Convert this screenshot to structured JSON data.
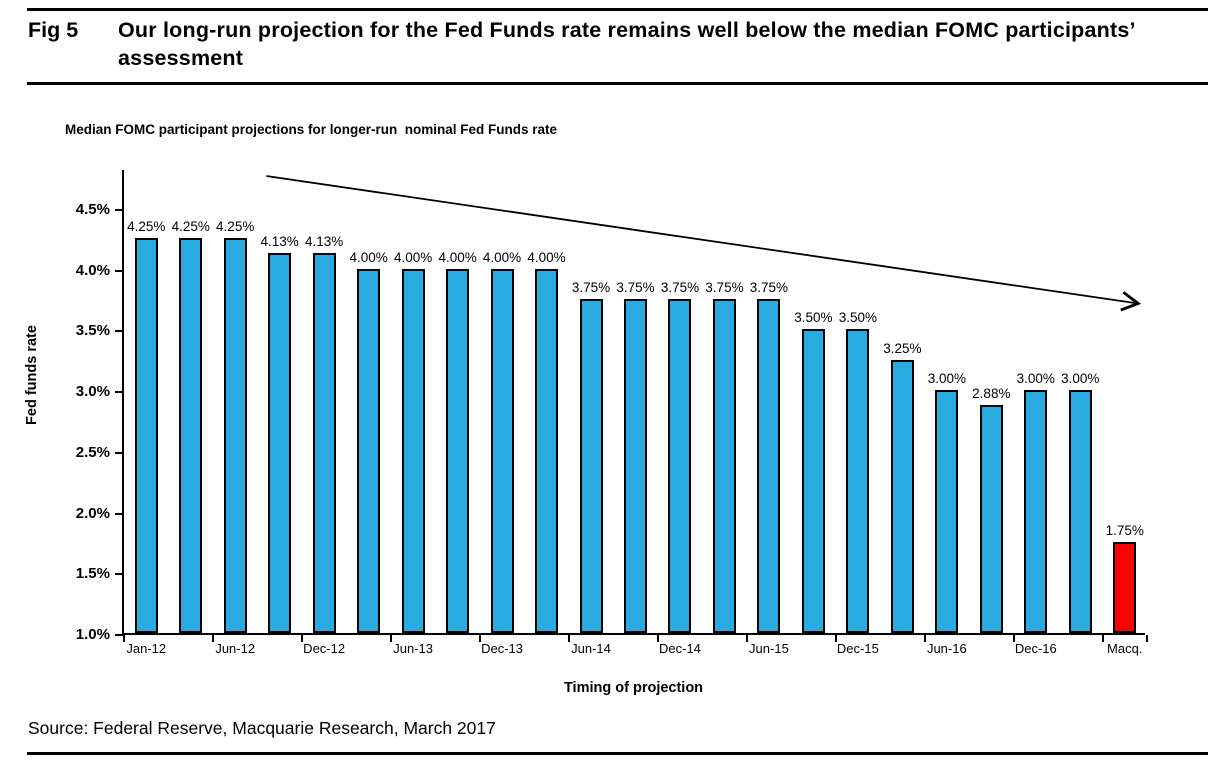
{
  "figure": {
    "fig_label": "Fig 5",
    "title": "Our long-run projection for the Fed Funds rate remains well below the median FOMC participants’ assessment",
    "source": "Source: Federal Reserve, Macquarie Research, March 2017"
  },
  "chart_data": {
    "type": "bar",
    "title": "Median FOMC participant projections for longer-run  nominal Fed Funds rate",
    "xlabel": "Timing of projection",
    "ylabel": "Fed funds rate",
    "ylim": [
      1.0,
      4.5
    ],
    "ytick_step": 0.5,
    "ytick_suffix": "%",
    "grid": false,
    "series_colors": {
      "FOMC": "#29ABE2",
      "Macquarie": "#FF0000"
    },
    "bar_outline_color": "#000000",
    "bars": [
      {
        "value": 4.25,
        "label": "4.25%",
        "series": "FOMC",
        "axis_label": "Jan-12"
      },
      {
        "value": 4.25,
        "label": "4.25%",
        "series": "FOMC",
        "axis_label": null
      },
      {
        "value": 4.25,
        "label": "4.25%",
        "series": "FOMC",
        "axis_label": "Jun-12"
      },
      {
        "value": 4.13,
        "label": "4.13%",
        "series": "FOMC",
        "axis_label": null
      },
      {
        "value": 4.13,
        "label": "4.13%",
        "series": "FOMC",
        "axis_label": "Dec-12"
      },
      {
        "value": 4.0,
        "label": "4.00%",
        "series": "FOMC",
        "axis_label": null
      },
      {
        "value": 4.0,
        "label": "4.00%",
        "series": "FOMC",
        "axis_label": "Jun-13"
      },
      {
        "value": 4.0,
        "label": "4.00%",
        "series": "FOMC",
        "axis_label": null
      },
      {
        "value": 4.0,
        "label": "4.00%",
        "series": "FOMC",
        "axis_label": "Dec-13"
      },
      {
        "value": 4.0,
        "label": "4.00%",
        "series": "FOMC",
        "axis_label": null
      },
      {
        "value": 3.75,
        "label": "3.75%",
        "series": "FOMC",
        "axis_label": "Jun-14"
      },
      {
        "value": 3.75,
        "label": "3.75%",
        "series": "FOMC",
        "axis_label": null
      },
      {
        "value": 3.75,
        "label": "3.75%",
        "series": "FOMC",
        "axis_label": "Dec-14"
      },
      {
        "value": 3.75,
        "label": "3.75%",
        "series": "FOMC",
        "axis_label": null
      },
      {
        "value": 3.75,
        "label": "3.75%",
        "series": "FOMC",
        "axis_label": "Jun-15"
      },
      {
        "value": 3.5,
        "label": "3.50%",
        "series": "FOMC",
        "axis_label": null
      },
      {
        "value": 3.5,
        "label": "3.50%",
        "series": "FOMC",
        "axis_label": "Dec-15"
      },
      {
        "value": 3.25,
        "label": "3.25%",
        "series": "FOMC",
        "axis_label": null
      },
      {
        "value": 3.0,
        "label": "3.00%",
        "series": "FOMC",
        "axis_label": "Jun-16"
      },
      {
        "value": 2.88,
        "label": "2.88%",
        "series": "FOMC",
        "axis_label": null
      },
      {
        "value": 3.0,
        "label": "3.00%",
        "series": "FOMC",
        "axis_label": "Dec-16"
      },
      {
        "value": 3.0,
        "label": "3.00%",
        "series": "FOMC",
        "axis_label": null
      },
      {
        "value": 1.75,
        "label": "1.75%",
        "series": "Macquarie",
        "axis_label": "Macq."
      }
    ],
    "annotation": {
      "type": "trend-arrow",
      "direction": "down-right",
      "x1_bar": 3.2,
      "y1_value": 4.78,
      "x2_bar": 22.8,
      "y2_value": 3.73
    }
  }
}
